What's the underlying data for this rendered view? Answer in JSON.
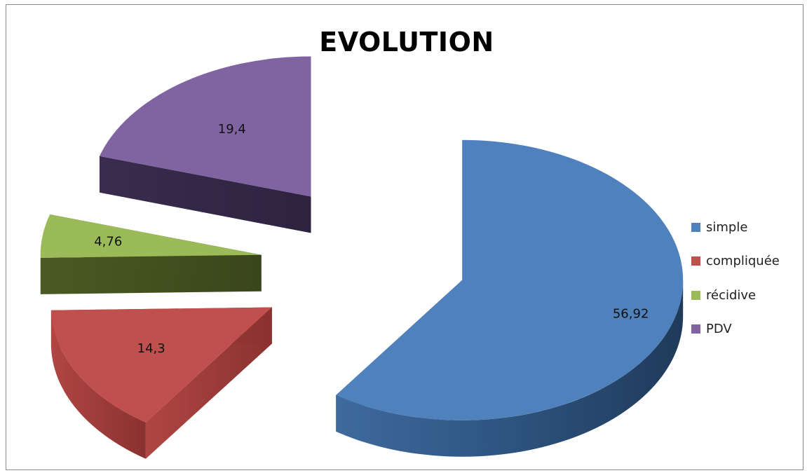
{
  "chart_data": {
    "type": "pie",
    "title": "EVOLUTION",
    "categories": [
      "simple",
      "compliquée",
      "récidive",
      "PDV"
    ],
    "values": [
      56.92,
      14.3,
      4.76,
      19.4
    ],
    "data_labels": [
      "56,92",
      "14,3",
      "4,76",
      "19,4"
    ],
    "colors": [
      "#4f81bd",
      "#c0504d",
      "#9bbb59",
      "#8064a2"
    ],
    "legend_position": "right",
    "style": "3d-exploded"
  }
}
